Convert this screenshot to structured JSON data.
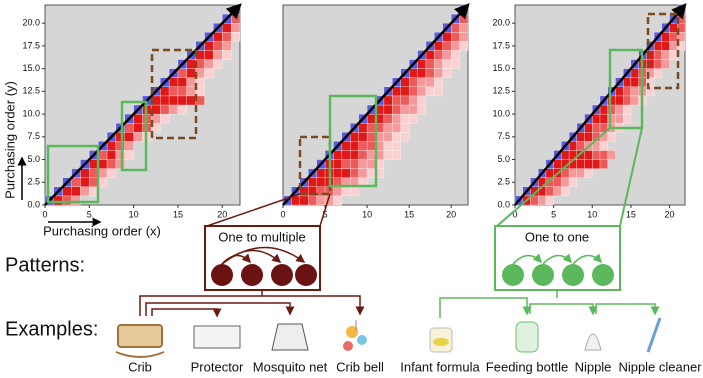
{
  "chart_data": [
    {
      "type": "heatmap",
      "xlabel": "Purchasing order (x)",
      "ylabel": "Purchasing order (y)",
      "xlim": [
        0,
        22
      ],
      "ylim": [
        0,
        22
      ],
      "xticks": [
        0,
        5,
        10,
        15,
        20
      ],
      "yticks": [
        {
          "value": 0,
          "label": "0.0"
        },
        {
          "value": 2.5,
          "label": "2.5"
        },
        {
          "value": 5,
          "label": "5.0"
        },
        {
          "value": 7.5,
          "label": "7.5"
        },
        {
          "value": 10,
          "label": "10.0"
        },
        {
          "value": 12.5,
          "label": "12.5"
        },
        {
          "value": 15,
          "label": "15.0"
        },
        {
          "value": 17.5,
          "label": "17.5"
        },
        {
          "value": 20,
          "label": "20.0"
        }
      ],
      "rows": [
        [
          4,
          3,
          2
        ],
        [
          4,
          4,
          2,
          1
        ],
        [
          3,
          4,
          3,
          1
        ],
        [
          4,
          3,
          2,
          1
        ],
        [
          4,
          4,
          3,
          2
        ],
        [
          3,
          4,
          2,
          1
        ],
        [
          4,
          3,
          2
        ],
        [
          4,
          4,
          2,
          1
        ],
        [
          3,
          4,
          3,
          1
        ],
        [
          4,
          3,
          2,
          1
        ],
        [
          4,
          4,
          3,
          2,
          1
        ],
        [
          4,
          4,
          4,
          4,
          4,
          3
        ],
        [
          4,
          3,
          3,
          2,
          1
        ],
        [
          4,
          4,
          2,
          1
        ],
        [
          3,
          4,
          2,
          1
        ],
        [
          4,
          3,
          2,
          1
        ],
        [
          4,
          4,
          2,
          1
        ],
        [
          4,
          3,
          2
        ],
        [
          4,
          3,
          1
        ],
        [
          4,
          2
        ],
        [
          3
        ]
      ]
    },
    {
      "type": "heatmap",
      "xlim": [
        0,
        22
      ],
      "ylim": [
        0,
        22
      ],
      "xticks": [
        0,
        5,
        10,
        15,
        20
      ],
      "rows": [
        [
          4,
          4,
          3,
          2,
          2,
          1
        ],
        [
          4,
          4,
          3,
          3,
          2,
          1,
          1
        ],
        [
          4,
          4,
          4,
          3,
          2,
          2,
          1
        ],
        [
          4,
          4,
          4,
          4,
          3,
          2,
          1,
          1
        ],
        [
          4,
          4,
          3,
          3,
          2,
          2,
          1
        ],
        [
          4,
          4,
          4,
          3,
          2,
          2,
          1,
          1
        ],
        [
          4,
          4,
          3,
          3,
          2,
          1,
          1
        ],
        [
          4,
          4,
          3,
          2,
          2,
          1,
          1
        ],
        [
          4,
          3,
          3,
          2,
          2,
          1
        ],
        [
          4,
          4,
          3,
          2,
          1,
          1
        ],
        [
          4,
          4,
          3,
          2,
          2,
          1
        ],
        [
          4,
          3,
          3,
          2,
          1
        ],
        [
          4,
          4,
          3,
          2,
          1,
          1
        ],
        [
          4,
          3,
          2,
          2,
          1
        ],
        [
          4,
          4,
          3,
          2,
          1
        ],
        [
          4,
          3,
          2,
          1,
          1
        ],
        [
          4,
          3,
          2,
          1
        ],
        [
          4,
          3,
          2,
          1
        ],
        [
          4,
          3,
          2
        ],
        [
          3,
          2
        ],
        [
          3
        ]
      ]
    },
    {
      "type": "heatmap",
      "xlim": [
        0,
        22
      ],
      "ylim": [
        0,
        22
      ],
      "xticks": [
        0,
        5,
        10,
        15,
        20
      ],
      "yticks": [
        {
          "value": 0,
          "label": "0.0"
        },
        {
          "value": 2.5,
          "label": "2.5"
        },
        {
          "value": 5,
          "label": "5.0"
        },
        {
          "value": 7.5,
          "label": "7.5"
        },
        {
          "value": 10,
          "label": "10.0"
        },
        {
          "value": 12.5,
          "label": "12.5"
        },
        {
          "value": 15,
          "label": "15.0"
        },
        {
          "value": 17.5,
          "label": "17.5"
        },
        {
          "value": 20,
          "label": "20.0"
        }
      ],
      "rows": [
        [
          4,
          3,
          2,
          1
        ],
        [
          4,
          4,
          3,
          2,
          1
        ],
        [
          4,
          3,
          3,
          2,
          1
        ],
        [
          4,
          4,
          3,
          2,
          2,
          1
        ],
        [
          4,
          4,
          4,
          4,
          4,
          4,
          3
        ],
        [
          4,
          4,
          4,
          4,
          3,
          3,
          2
        ],
        [
          4,
          3,
          2,
          2,
          1
        ],
        [
          4,
          4,
          3,
          2,
          1
        ],
        [
          4,
          3,
          3,
          2,
          1
        ],
        [
          4,
          4,
          2,
          2,
          1
        ],
        [
          4,
          3,
          2,
          1
        ],
        [
          4,
          4,
          3,
          2,
          1
        ],
        [
          4,
          3,
          2,
          2,
          1
        ],
        [
          4,
          4,
          3,
          1
        ],
        [
          4,
          3,
          2,
          1
        ],
        [
          4,
          4,
          3,
          2
        ],
        [
          4,
          3,
          2,
          1
        ],
        [
          4,
          4,
          2,
          1
        ],
        [
          4,
          3,
          2
        ],
        [
          4,
          3
        ],
        [
          3
        ]
      ]
    }
  ],
  "color_scale": [
    "#fbd0d0",
    "#f59a9a",
    "#ec5a5a",
    "#e01818"
  ],
  "diagonal_color": "#5a5ae0",
  "patterns": {
    "label": "Patterns:",
    "one_to_multiple": "One to multiple",
    "one_to_one": "One to one"
  },
  "examples": {
    "label": "Examples:",
    "items": [
      "Crib",
      "Protector",
      "Mosquito net",
      "Crib bell",
      "Infant formula",
      "Feeding bottle",
      "Nipple",
      "Nipple cleaner"
    ]
  }
}
